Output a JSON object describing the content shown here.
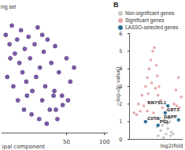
{
  "chart_data": [
    {
      "type": "scatter",
      "xlabel": "ipal component",
      "xlim": [
        -35,
        105
      ],
      "xticks": [
        50,
        100
      ],
      "ylim": [
        -65,
        60
      ],
      "tick_labels": "x",
      "legend": "top-left",
      "series": [
        {
          "name": "ing set",
          "color": "#7b5aa6",
          "marker": "circle",
          "x": [
            -30,
            -25,
            -22,
            -18,
            -15,
            -12,
            -10,
            -8,
            -5,
            -3,
            0,
            2,
            5,
            8,
            10,
            12,
            15,
            18,
            20,
            22,
            25,
            28,
            30,
            33,
            35,
            38,
            40,
            45,
            50,
            55,
            -28,
            -20,
            -14,
            -6,
            4,
            14,
            24,
            34,
            44,
            60,
            -24,
            -2,
            18,
            36,
            52
          ],
          "values": [
            40,
            30,
            50,
            20,
            35,
            10,
            45,
            0,
            25,
            -10,
            38,
            15,
            -20,
            30,
            -5,
            48,
            5,
            -30,
            22,
            -15,
            35,
            -40,
            10,
            -25,
            28,
            -50,
            0,
            -35,
            15,
            -10,
            -5,
            -15,
            -30,
            -40,
            -45,
            -50,
            -55,
            -20,
            -25,
            5,
            15,
            -25,
            40,
            -40,
            -30
          ]
        }
      ]
    },
    {
      "type": "scatter",
      "title": "B",
      "xlabel": "log2(fold",
      "ylabel": "−log₁₀(p value)",
      "xlim": [
        -4,
        2
      ],
      "ylim": [
        0,
        6
      ],
      "yticks": [
        0,
        1,
        2,
        3,
        4,
        5,
        6
      ],
      "tick_labels": "y",
      "legend": "top-left",
      "series": [
        {
          "name": "Non-significant genes",
          "color": "#c8c8c8",
          "marker": "circle",
          "x": [
            -0.8,
            -0.5,
            -0.3,
            -0.1,
            0.1,
            0.3,
            0.5,
            0.7,
            -0.6,
            0.2,
            0.6,
            -0.2,
            0.4,
            -0.9,
            0.9
          ],
          "values": [
            0.2,
            0.5,
            0.8,
            1.1,
            0.3,
            0.6,
            1.0,
            0.4,
            1.2,
            0.9,
            0.2,
            0.1,
            1.2,
            0.7,
            0.3
          ]
        },
        {
          "name": "Significant genes",
          "color": "#e8a8a8",
          "marker": "circle",
          "x": [
            -3.5,
            -3,
            -2.6,
            -2.2,
            -2,
            -1.8,
            -1.6,
            -1.4,
            -1.2,
            -1,
            -0.9,
            -0.7,
            -0.5,
            -0.3,
            1,
            1.2,
            1.5,
            1.8,
            -2.8,
            -2.4,
            -1.9,
            -1.5,
            -1.1,
            -0.8,
            0.8,
            1.3,
            -3.2,
            -2,
            -1.3,
            1.6
          ],
          "values": [
            1.5,
            2,
            2.5,
            3,
            3.5,
            4,
            4.5,
            5,
            5.2,
            4.2,
            3.6,
            3,
            2.2,
            1.8,
            2,
            2.8,
            3.5,
            2.4,
            1.6,
            1.9,
            2.6,
            3.2,
            2.9,
            2.5,
            1.7,
            1.9,
            1.4,
            1.6,
            1.5,
            1.8
          ]
        },
        {
          "name": "LASSO-selected genes",
          "color": "#2a6f97",
          "marker": "circle",
          "x": [
            -2.2,
            0.3,
            0.0,
            1.5,
            -0.8
          ],
          "values": [
            1.0,
            1.9,
            1.5,
            1.1,
            0.8
          ],
          "labels": [
            "CIITA",
            "RN7SL1",
            "GST3",
            "DAPP",
            "PGL"
          ]
        }
      ]
    }
  ]
}
